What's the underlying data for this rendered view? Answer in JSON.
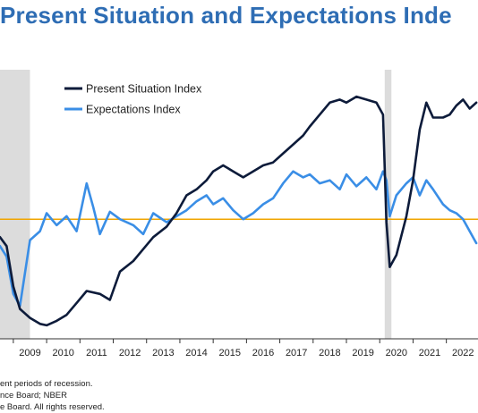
{
  "chart_data": {
    "type": "line",
    "title": "Present Situation and Expectations Inde",
    "x_tick_labels": [
      "2009",
      "2010",
      "2011",
      "2012",
      "2013",
      "2014",
      "2015",
      "2016",
      "2017",
      "2018",
      "2019",
      "2020",
      "2021",
      "2022"
    ],
    "xlim": [
      2008.6,
      2022.95
    ],
    "ylim": [
      0,
      180
    ],
    "grid": false,
    "legend_position": "top-center",
    "recessions": [
      [
        2008.6,
        2009.5
      ],
      [
        2020.15,
        2020.35
      ]
    ],
    "reference_line": {
      "y": 80,
      "color": "#f0a500"
    },
    "series": [
      {
        "name": "Present Situation Index",
        "color": "#0d1b3a",
        "x": [
          2008.6,
          2008.8,
          2009.0,
          2009.2,
          2009.5,
          2009.8,
          2010.0,
          2010.3,
          2010.6,
          2010.9,
          2011.2,
          2011.6,
          2011.9,
          2012.2,
          2012.6,
          2012.9,
          2013.2,
          2013.6,
          2013.9,
          2014.2,
          2014.5,
          2014.8,
          2015.0,
          2015.3,
          2015.6,
          2015.9,
          2016.2,
          2016.5,
          2016.8,
          2017.1,
          2017.4,
          2017.7,
          2017.9,
          2018.2,
          2018.5,
          2018.8,
          2019.0,
          2019.3,
          2019.6,
          2019.9,
          2020.1,
          2020.2,
          2020.3,
          2020.5,
          2020.8,
          2021.0,
          2021.2,
          2021.4,
          2021.6,
          2021.9,
          2022.1,
          2022.3,
          2022.5,
          2022.7,
          2022.9
        ],
        "values": [
          68,
          62,
          35,
          20,
          14,
          10,
          9,
          12,
          16,
          24,
          32,
          30,
          26,
          45,
          52,
          60,
          68,
          75,
          84,
          96,
          100,
          106,
          112,
          116,
          112,
          108,
          112,
          116,
          118,
          124,
          130,
          136,
          142,
          150,
          158,
          160,
          158,
          162,
          160,
          158,
          150,
          78,
          48,
          56,
          82,
          106,
          140,
          158,
          148,
          148,
          150,
          156,
          160,
          154,
          158
        ]
      },
      {
        "name": "Expectations Index",
        "color": "#3a8ee6",
        "x": [
          2008.6,
          2008.8,
          2009.0,
          2009.2,
          2009.5,
          2009.8,
          2010.0,
          2010.3,
          2010.6,
          2010.9,
          2011.2,
          2011.4,
          2011.6,
          2011.9,
          2012.2,
          2012.6,
          2012.9,
          2013.2,
          2013.6,
          2013.9,
          2014.2,
          2014.5,
          2014.8,
          2015.0,
          2015.3,
          2015.6,
          2015.9,
          2016.2,
          2016.5,
          2016.8,
          2017.1,
          2017.4,
          2017.7,
          2017.9,
          2018.2,
          2018.5,
          2018.8,
          2019.0,
          2019.3,
          2019.6,
          2019.9,
          2020.1,
          2020.2,
          2020.3,
          2020.5,
          2020.8,
          2021.0,
          2021.2,
          2021.4,
          2021.6,
          2021.9,
          2022.1,
          2022.3,
          2022.5,
          2022.7,
          2022.9
        ],
        "values": [
          62,
          55,
          30,
          22,
          66,
          72,
          84,
          76,
          82,
          72,
          104,
          88,
          70,
          85,
          80,
          76,
          70,
          84,
          78,
          82,
          86,
          92,
          96,
          90,
          94,
          86,
          80,
          84,
          90,
          94,
          104,
          112,
          108,
          110,
          104,
          106,
          100,
          110,
          102,
          108,
          100,
          112,
          106,
          82,
          96,
          104,
          108,
          96,
          106,
          100,
          90,
          86,
          84,
          80,
          72,
          64
        ]
      }
    ]
  },
  "footer": {
    "line1": "ent periods of recession.",
    "line2": "nce Board;  NBER",
    "line3": "e Board. All rights reserved."
  }
}
